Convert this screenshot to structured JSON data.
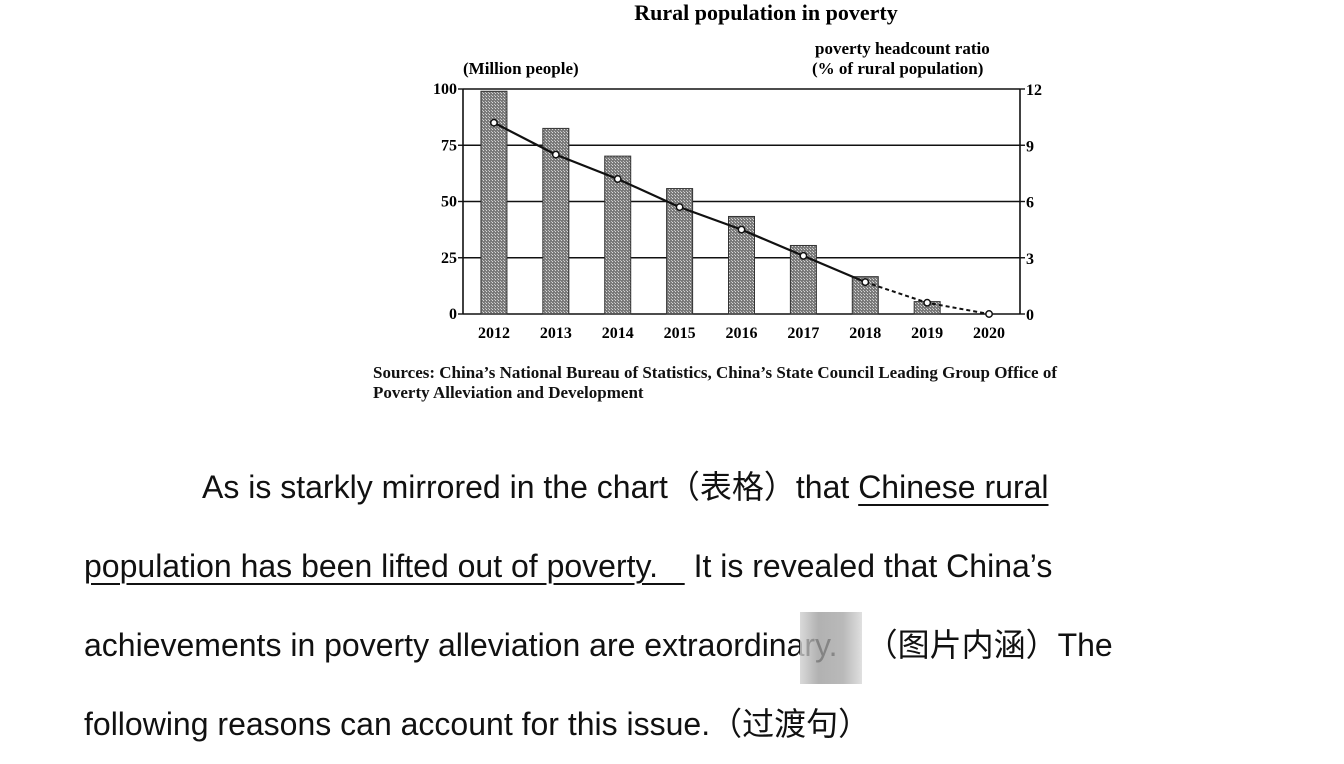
{
  "chart_data": {
    "type": "bar",
    "title": "Rural population in poverty",
    "categories": [
      "2012",
      "2013",
      "2014",
      "2015",
      "2016",
      "2017",
      "2018",
      "2019",
      "2020"
    ],
    "left_axis_label": "(Million people)",
    "right_axis_label_line1": "poverty headcount ratio",
    "right_axis_label_line2": "(% of rural population)",
    "ylim": [
      0,
      100
    ],
    "yticks": [
      "0",
      "25",
      "50",
      "75",
      "100"
    ],
    "y2lim": [
      0,
      12
    ],
    "y2ticks": [
      "0",
      "3",
      "6",
      "9",
      "12"
    ],
    "series": [
      {
        "name": "Rural population in poverty (million people)",
        "kind": "bar",
        "values": [
          98.99,
          82.49,
          70.17,
          55.75,
          43.35,
          30.46,
          16.6,
          5.51,
          null
        ]
      },
      {
        "name": "Poverty headcount ratio (% of rural population)",
        "kind": "line",
        "values": [
          10.2,
          8.5,
          7.2,
          5.7,
          4.5,
          3.1,
          1.7,
          0.6,
          0.0
        ],
        "dashed_from_index": 6
      }
    ],
    "grid": true,
    "source_line1": "Sources: China’s National Bureau of Statistics, China’s State Council Leading Group Office of",
    "source_line2": "Poverty Alleviation and Development"
  },
  "paragraph": {
    "l1_a": "As is starkly mirrored in the chart（表格）that ",
    "l1_u": "Chinese rural",
    "l2_u": "population has been lifted out of poverty.   ",
    "l2_b": " It is revealed that China’s",
    "l3_a": "achievements in poverty alleviation are extraordinary.",
    "l3_b": "（图片内涵）The",
    "l4_a": "following reasons can account for this issue.（过渡句）"
  }
}
